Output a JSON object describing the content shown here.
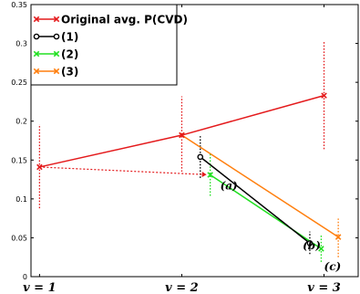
{
  "chart_data": {
    "type": "line",
    "ylim": [
      0,
      0.35
    ],
    "y_ticks": [
      0,
      0.05,
      0.1,
      0.15,
      0.2,
      0.25,
      0.3,
      0.35
    ],
    "y_tick_labels": [
      "0",
      "0.05",
      "0.1",
      "0.15",
      "0.2",
      "0.25",
      "0.3",
      "0.35"
    ],
    "x_ticks": [
      1,
      2,
      3
    ],
    "x_tick_labels": [
      "v = 1",
      "v = 2",
      "v = 3"
    ],
    "grid": false,
    "legend_position": "top-left",
    "series": [
      {
        "name": "Original avg. P(CVD)",
        "color": "#e41a1c",
        "marker": "x",
        "points": [
          {
            "x": 1,
            "y": 0.141
          },
          {
            "x": 2,
            "y": 0.182
          },
          {
            "x": 3,
            "y": 0.233
          }
        ]
      },
      {
        "name": "(1)",
        "color": "#000000",
        "marker": "o",
        "points": [
          {
            "x": 2.13,
            "y": 0.154
          },
          {
            "x": 2.9,
            "y": 0.043
          }
        ]
      },
      {
        "name": "(2)",
        "color": "#22e022",
        "marker": "x",
        "points": [
          {
            "x": 2.2,
            "y": 0.131
          },
          {
            "x": 2.98,
            "y": 0.036
          }
        ]
      },
      {
        "name": "(3)",
        "color": "#ff7f0e",
        "marker": "x",
        "points": [
          {
            "x": 2.0,
            "y": 0.182
          },
          {
            "x": 3.1,
            "y": 0.051
          }
        ]
      }
    ],
    "error_bars": [
      {
        "x": 1,
        "low": 0.088,
        "high": 0.196,
        "color": "#e41a1c"
      },
      {
        "x": 2,
        "low": 0.135,
        "high": 0.232,
        "color": "#e41a1c"
      },
      {
        "x": 3,
        "low": 0.164,
        "high": 0.302,
        "color": "#e41a1c"
      },
      {
        "x": 2.13,
        "low": 0.127,
        "high": 0.181,
        "color": "#000000"
      },
      {
        "x": 2.9,
        "low": 0.029,
        "high": 0.058,
        "color": "#000000"
      },
      {
        "x": 2.2,
        "low": 0.104,
        "high": 0.158,
        "color": "#22e022"
      },
      {
        "x": 2.98,
        "low": 0.019,
        "high": 0.053,
        "color": "#22e022"
      },
      {
        "x": 3.1,
        "low": 0.025,
        "high": 0.075,
        "color": "#ff7f0e"
      }
    ],
    "arrows": [
      {
        "from": {
          "x": 1,
          "y": 0.141
        },
        "to": {
          "x": 2.2,
          "y": 0.131
        },
        "color": "#e41a1c",
        "style": "dotted"
      }
    ],
    "annotations": [
      {
        "text": "(a)",
        "x": 2.27,
        "y": 0.112
      },
      {
        "text": "(b)",
        "x": 2.85,
        "y": 0.035
      },
      {
        "text": "(c)",
        "x": 3.0,
        "y": 0.008
      }
    ]
  }
}
